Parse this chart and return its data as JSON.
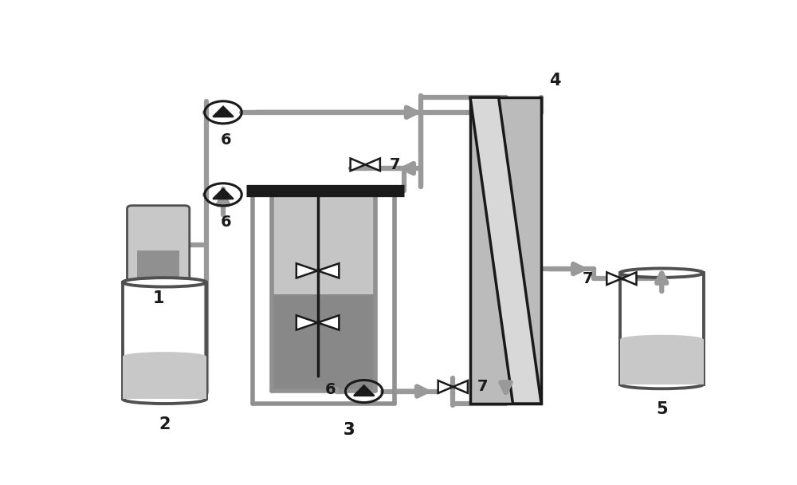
{
  "bg": "#ffffff",
  "pipe_color": "#999999",
  "black": "#1a1a1a",
  "lgray": "#c8c8c8",
  "mgray": "#909090",
  "dgray": "#505050",
  "vessel_top": "#c0c0c0",
  "vessel_bot": "#888888",
  "membrane_bg": "#b8b8b8",
  "membrane_light": "#d4d4d4",
  "pipe_lw": 4.5,
  "vessel_lw": 4.0
}
